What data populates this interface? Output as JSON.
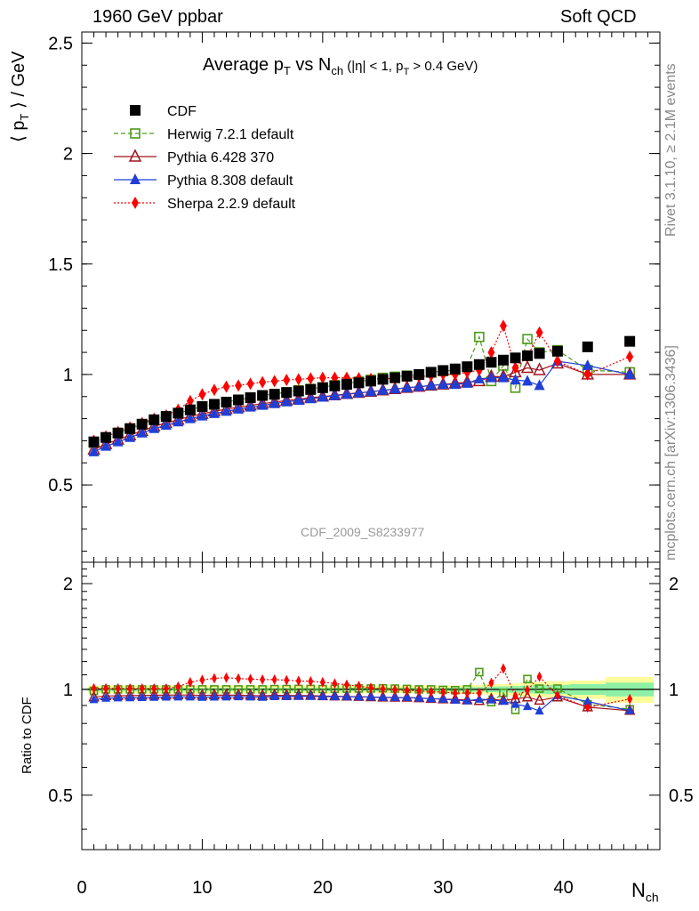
{
  "header": {
    "left": "1960 GeV ppbar",
    "right": "Soft QCD"
  },
  "side_text": {
    "rivet": "Rivet 3.1.10, ≥ 2.1M events",
    "mcplots": "mcplots.cern.ch [arXiv:1306.3436]"
  },
  "watermark": "CDF_2009_S8233977",
  "colors": {
    "cdf": "#000000",
    "herwig": "#4d9b1a",
    "pythia6": "#a0141e",
    "pythia8": "#1f3fd6",
    "sherpa": "#ff0000",
    "band_yellow": "#fdfd9a",
    "band_green": "#8ef0a5"
  },
  "chart_data": [
    {
      "type": "scatter",
      "panel": "main",
      "title": "Average p_T vs N_ch (|η| < 1, p_T > 0.4 GeV)",
      "title_parts": {
        "main": "Average p",
        "sub1": "T",
        "mid": " vs N",
        "sub2": "ch",
        "cut1": " (|η| < 1, p",
        "sub3": "T",
        "cut2": " > 0.4 GeV)"
      },
      "ylabel": "⟨ p_T ⟩ / GeV",
      "ylabel_parts": {
        "open": "⟨ p",
        "sub": "T",
        "close": " ⟩ / GeV"
      },
      "xlabel_parts": {
        "main": "N",
        "sub": "ch"
      },
      "xlim": [
        0,
        48
      ],
      "ylim": [
        0.15,
        2.55
      ],
      "y_ticks": [
        "0.5",
        "1",
        "1.5",
        "2",
        "2.5"
      ],
      "x_ticks": [
        "0",
        "10",
        "20",
        "30",
        "40"
      ],
      "legend_position": "top-left",
      "series": [
        {
          "name": "CDF",
          "x": [
            1,
            2,
            3,
            4,
            5,
            6,
            7,
            8,
            9,
            10,
            11,
            12,
            13,
            14,
            15,
            16,
            17,
            18,
            19,
            20,
            21,
            22,
            23,
            24,
            25,
            26,
            27,
            28,
            29,
            30,
            31,
            32,
            33,
            34,
            35,
            36,
            37,
            38,
            39.5,
            42,
            45.5
          ],
          "y": [
            0.695,
            0.715,
            0.735,
            0.755,
            0.775,
            0.795,
            0.81,
            0.825,
            0.84,
            0.855,
            0.865,
            0.875,
            0.885,
            0.895,
            0.905,
            0.91,
            0.918,
            0.925,
            0.932,
            0.94,
            0.948,
            0.955,
            0.962,
            0.97,
            0.978,
            0.985,
            0.992,
            1.0,
            1.01,
            1.018,
            1.025,
            1.035,
            1.045,
            1.055,
            1.065,
            1.075,
            1.085,
            1.095,
            1.105,
            1.125,
            1.15
          ]
        },
        {
          "name": "Herwig 7.2.1 default",
          "x": [
            1,
            2,
            3,
            4,
            5,
            6,
            7,
            8,
            9,
            10,
            11,
            12,
            13,
            14,
            15,
            16,
            17,
            18,
            19,
            20,
            21,
            22,
            23,
            24,
            25,
            26,
            27,
            28,
            29,
            30,
            31,
            32,
            33,
            34,
            35,
            36,
            37,
            38,
            39.5,
            42,
            45.5
          ],
          "y": [
            0.69,
            0.715,
            0.735,
            0.755,
            0.775,
            0.795,
            0.81,
            0.825,
            0.84,
            0.855,
            0.865,
            0.875,
            0.885,
            0.895,
            0.905,
            0.912,
            0.92,
            0.928,
            0.935,
            0.942,
            0.952,
            0.96,
            0.968,
            0.976,
            0.985,
            0.99,
            0.995,
            1.0,
            1.01,
            1.015,
            1.02,
            1.035,
            1.17,
            0.97,
            1.04,
            0.94,
            1.16,
            1.1,
            1.11,
            1.02,
            1.01
          ]
        },
        {
          "name": "Pythia 6.428 370",
          "x": [
            1,
            2,
            3,
            4,
            5,
            6,
            7,
            8,
            9,
            10,
            11,
            12,
            13,
            14,
            15,
            16,
            17,
            18,
            19,
            20,
            21,
            22,
            23,
            24,
            25,
            26,
            27,
            28,
            29,
            30,
            31,
            32,
            33,
            34,
            35,
            36,
            37,
            38,
            39.5,
            42,
            45.5
          ],
          "y": [
            0.66,
            0.685,
            0.705,
            0.725,
            0.745,
            0.765,
            0.78,
            0.795,
            0.81,
            0.822,
            0.833,
            0.843,
            0.852,
            0.86,
            0.868,
            0.875,
            0.882,
            0.888,
            0.895,
            0.9,
            0.906,
            0.912,
            0.917,
            0.922,
            0.928,
            0.934,
            0.94,
            0.945,
            0.95,
            0.955,
            0.96,
            0.965,
            0.97,
            0.99,
            0.99,
            1.01,
            1.03,
            1.02,
            1.05,
            1.0,
            1.0
          ]
        },
        {
          "name": "Pythia 8.308 default",
          "x": [
            1,
            2,
            3,
            4,
            5,
            6,
            7,
            8,
            9,
            10,
            11,
            12,
            13,
            14,
            15,
            16,
            17,
            18,
            19,
            20,
            21,
            22,
            23,
            24,
            25,
            26,
            27,
            28,
            29,
            30,
            31,
            32,
            33,
            34,
            35,
            36,
            37,
            38,
            39.5,
            42,
            45.5
          ],
          "y": [
            0.65,
            0.675,
            0.695,
            0.715,
            0.735,
            0.755,
            0.77,
            0.785,
            0.8,
            0.812,
            0.823,
            0.833,
            0.843,
            0.852,
            0.86,
            0.868,
            0.876,
            0.883,
            0.89,
            0.897,
            0.904,
            0.91,
            0.916,
            0.922,
            0.928,
            0.934,
            0.94,
            0.945,
            0.95,
            0.955,
            0.955,
            0.96,
            0.98,
            0.985,
            0.985,
            0.975,
            0.97,
            0.95,
            1.06,
            1.04,
            1.0
          ]
        },
        {
          "name": "Sherpa 2.2.9 default",
          "x": [
            1,
            2,
            3,
            4,
            5,
            6,
            7,
            8,
            9,
            10,
            11,
            12,
            13,
            14,
            15,
            16,
            17,
            18,
            19,
            20,
            21,
            22,
            23,
            24,
            25,
            26,
            27,
            28,
            29,
            30,
            31,
            32,
            33,
            34,
            35,
            36,
            37,
            38,
            39.5,
            42,
            45.5
          ],
          "y": [
            0.7,
            0.72,
            0.74,
            0.76,
            0.78,
            0.8,
            0.815,
            0.84,
            0.88,
            0.91,
            0.93,
            0.945,
            0.95,
            0.958,
            0.965,
            0.97,
            0.975,
            0.978,
            0.982,
            0.985,
            0.985,
            0.985,
            0.983,
            0.98,
            0.98,
            0.982,
            0.985,
            0.99,
            0.995,
            1.0,
            1.0,
            1.01,
            1.02,
            1.1,
            1.22,
            1.03,
            1.08,
            1.19,
            1.06,
            1.0,
            1.08
          ]
        }
      ]
    },
    {
      "type": "scatter",
      "panel": "ratio",
      "ylabel": "Ratio to CDF",
      "xlabel_parts": {
        "main": "N",
        "sub": "ch"
      },
      "xlim": [
        0,
        48
      ],
      "ylim": [
        0.35,
        2.3
      ],
      "y_ticks": [
        "0.5",
        "1",
        "2"
      ],
      "x_ticks": [
        "0",
        "10",
        "20",
        "30",
        "40"
      ],
      "bands": {
        "x_edges": [
          0.5,
          1.5,
          2.5,
          3.5,
          4.5,
          5.5,
          6.5,
          7.5,
          8.5,
          9.5,
          10.5,
          11.5,
          12.5,
          13.5,
          14.5,
          15.5,
          16.5,
          17.5,
          18.5,
          19.5,
          20.5,
          21.5,
          22.5,
          23.5,
          24.5,
          25.5,
          26.5,
          27.5,
          28.5,
          29.5,
          30.5,
          31.5,
          32.5,
          33.5,
          34.5,
          35.5,
          36.5,
          37.5,
          38.5,
          40.5,
          43.5,
          47.5
        ],
        "yellow_halfwidth": [
          0.025,
          0.025,
          0.025,
          0.025,
          0.025,
          0.025,
          0.025,
          0.025,
          0.025,
          0.025,
          0.025,
          0.025,
          0.025,
          0.025,
          0.025,
          0.025,
          0.025,
          0.025,
          0.025,
          0.025,
          0.025,
          0.025,
          0.025,
          0.025,
          0.025,
          0.025,
          0.025,
          0.025,
          0.025,
          0.025,
          0.025,
          0.03,
          0.03,
          0.035,
          0.035,
          0.04,
          0.045,
          0.05,
          0.055,
          0.06,
          0.085
        ],
        "green_halfwidth": [
          0.01,
          0.01,
          0.01,
          0.01,
          0.01,
          0.01,
          0.01,
          0.01,
          0.01,
          0.01,
          0.01,
          0.01,
          0.01,
          0.01,
          0.01,
          0.01,
          0.01,
          0.01,
          0.01,
          0.01,
          0.01,
          0.01,
          0.01,
          0.01,
          0.01,
          0.01,
          0.01,
          0.01,
          0.01,
          0.01,
          0.012,
          0.015,
          0.015,
          0.018,
          0.02,
          0.022,
          0.025,
          0.028,
          0.03,
          0.035,
          0.045
        ]
      },
      "series": [
        {
          "name": "Herwig 7.2.1 default",
          "x": [
            1,
            2,
            3,
            4,
            5,
            6,
            7,
            8,
            9,
            10,
            11,
            12,
            13,
            14,
            15,
            16,
            17,
            18,
            19,
            20,
            21,
            22,
            23,
            24,
            25,
            26,
            27,
            28,
            29,
            30,
            31,
            32,
            33,
            34,
            35,
            36,
            37,
            38,
            39.5,
            42,
            45.5
          ],
          "y": [
            0.99,
            1.0,
            1.0,
            1.0,
            1.0,
            1.0,
            1.0,
            1.0,
            1.0,
            1.0,
            1.0,
            1.0,
            1.0,
            1.0,
            1.0,
            1.002,
            1.002,
            1.003,
            1.003,
            1.002,
            1.004,
            1.005,
            1.006,
            1.006,
            1.007,
            1.005,
            1.003,
            1.0,
            1.0,
            0.997,
            0.995,
            1.0,
            1.12,
            0.92,
            0.977,
            0.874,
            1.07,
            1.005,
            1.005,
            0.907,
            0.878
          ]
        },
        {
          "name": "Pythia 6.428 370",
          "x": [
            1,
            2,
            3,
            4,
            5,
            6,
            7,
            8,
            9,
            10,
            11,
            12,
            13,
            14,
            15,
            16,
            17,
            18,
            19,
            20,
            21,
            22,
            23,
            24,
            25,
            26,
            27,
            28,
            29,
            30,
            31,
            32,
            33,
            34,
            35,
            36,
            37,
            38,
            39.5,
            42,
            45.5
          ],
          "y": [
            0.95,
            0.958,
            0.959,
            0.96,
            0.961,
            0.962,
            0.963,
            0.964,
            0.964,
            0.961,
            0.963,
            0.963,
            0.963,
            0.961,
            0.959,
            0.962,
            0.961,
            0.96,
            0.96,
            0.957,
            0.956,
            0.955,
            0.953,
            0.951,
            0.949,
            0.948,
            0.948,
            0.945,
            0.941,
            0.938,
            0.937,
            0.932,
            0.928,
            0.938,
            0.93,
            0.94,
            0.95,
            0.93,
            0.95,
            0.89,
            0.87
          ]
        },
        {
          "name": "Pythia 8.308 default",
          "x": [
            1,
            2,
            3,
            4,
            5,
            6,
            7,
            8,
            9,
            10,
            11,
            12,
            13,
            14,
            15,
            16,
            17,
            18,
            19,
            20,
            21,
            22,
            23,
            24,
            25,
            26,
            27,
            28,
            29,
            30,
            31,
            32,
            33,
            34,
            35,
            36,
            37,
            38,
            39.5,
            42,
            45.5
          ],
          "y": [
            0.935,
            0.944,
            0.946,
            0.947,
            0.948,
            0.95,
            0.951,
            0.952,
            0.952,
            0.95,
            0.951,
            0.952,
            0.953,
            0.952,
            0.95,
            0.954,
            0.954,
            0.955,
            0.955,
            0.954,
            0.954,
            0.953,
            0.952,
            0.951,
            0.949,
            0.948,
            0.948,
            0.945,
            0.941,
            0.938,
            0.932,
            0.928,
            0.938,
            0.934,
            0.925,
            0.907,
            0.894,
            0.868,
            0.96,
            0.924,
            0.87
          ]
        },
        {
          "name": "Sherpa 2.2.9 default",
          "x": [
            1,
            2,
            3,
            4,
            5,
            6,
            7,
            8,
            9,
            10,
            11,
            12,
            13,
            14,
            15,
            16,
            17,
            18,
            19,
            20,
            21,
            22,
            23,
            24,
            25,
            26,
            27,
            28,
            29,
            30,
            31,
            32,
            33,
            34,
            35,
            36,
            37,
            38,
            39.5,
            42,
            45.5
          ],
          "y": [
            1.007,
            1.007,
            1.007,
            1.006,
            1.006,
            1.006,
            1.006,
            1.018,
            1.048,
            1.064,
            1.075,
            1.08,
            1.073,
            1.07,
            1.066,
            1.066,
            1.062,
            1.057,
            1.054,
            1.048,
            1.039,
            1.031,
            1.022,
            1.01,
            1.002,
            0.997,
            0.993,
            0.99,
            0.985,
            0.982,
            0.976,
            0.976,
            0.976,
            1.043,
            1.146,
            0.958,
            0.995,
            1.087,
            0.96,
            0.889,
            0.939
          ]
        }
      ]
    }
  ],
  "legend": [
    {
      "label": "CDF",
      "marker": "square-filled",
      "color": "#000000",
      "dash": ""
    },
    {
      "label": "Herwig 7.2.1 default",
      "marker": "square-open",
      "color": "#4d9b1a",
      "dash": "5,3"
    },
    {
      "label": "Pythia 6.428 370",
      "marker": "triangle-open",
      "color": "#a0141e",
      "dash": ""
    },
    {
      "label": "Pythia 8.308 default",
      "marker": "triangle-filled",
      "color": "#1f3fd6",
      "dash": ""
    },
    {
      "label": "Sherpa 2.2.9 default",
      "marker": "diamond-filled",
      "color": "#ff0000",
      "dash": "2,2"
    }
  ]
}
